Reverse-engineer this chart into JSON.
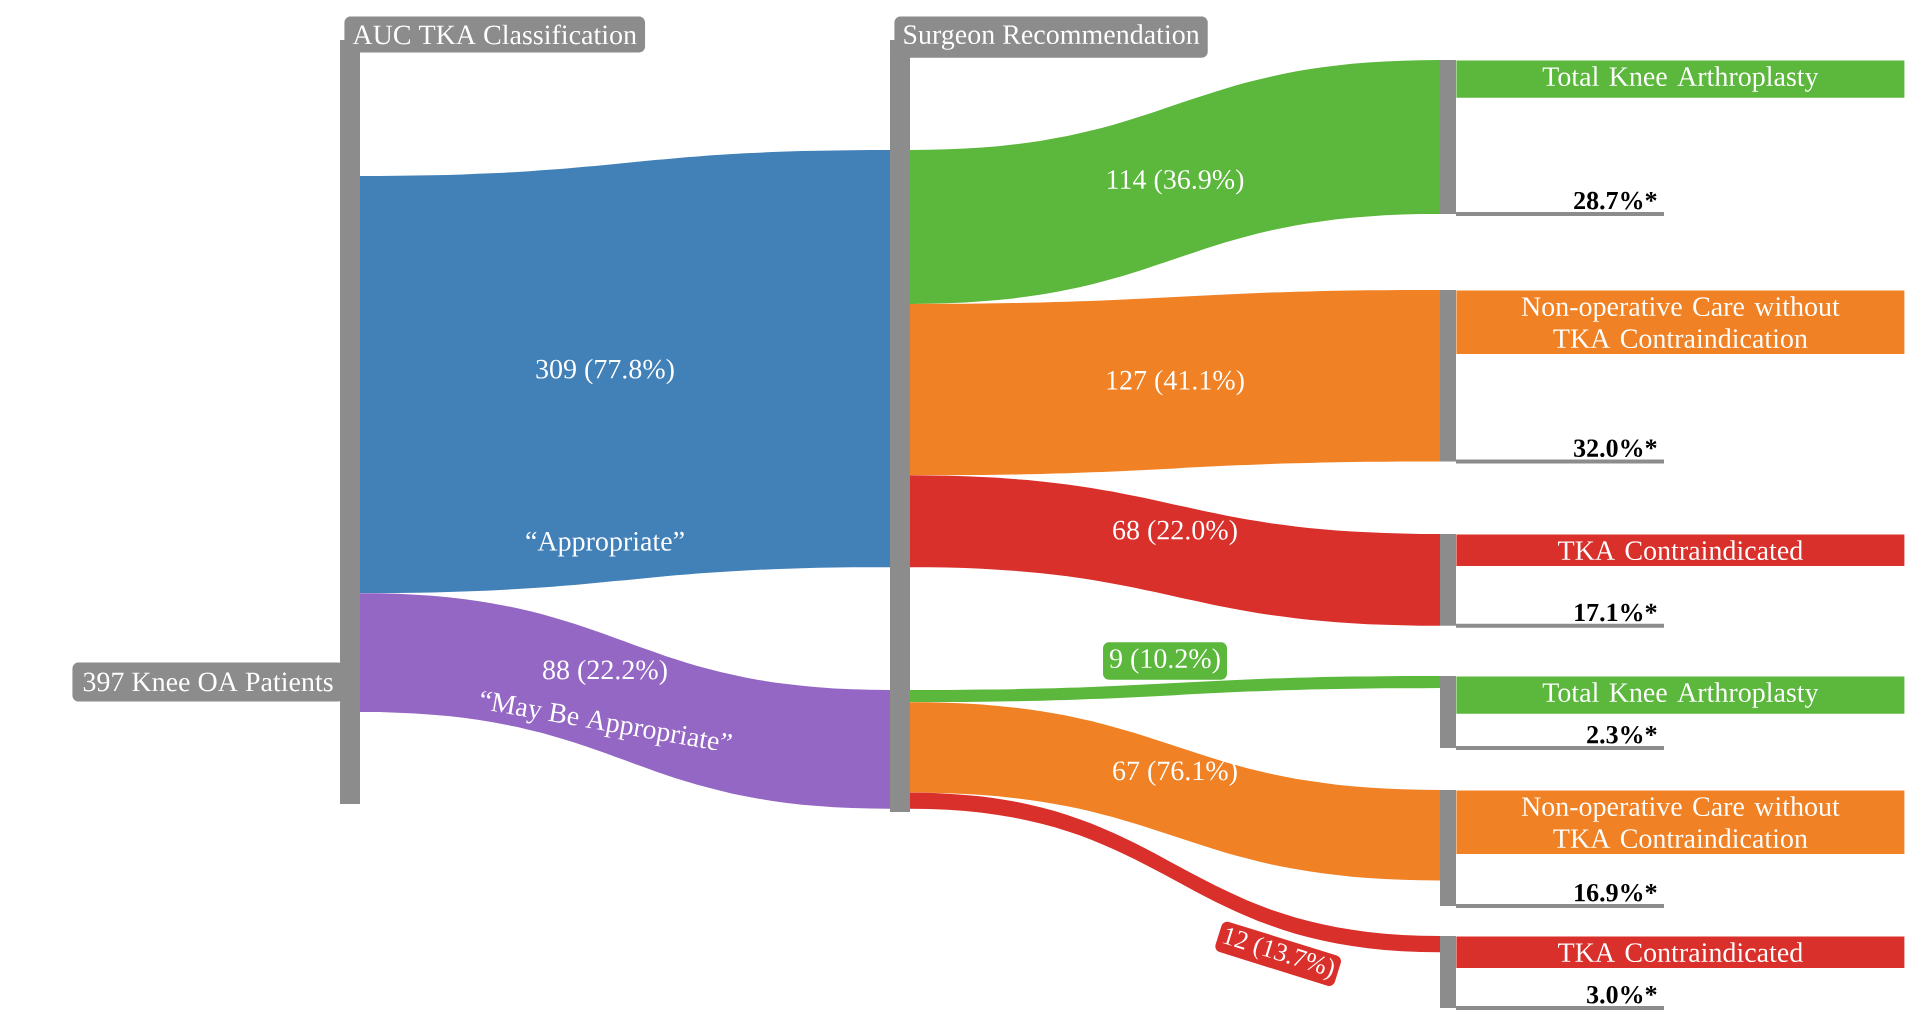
{
  "chart_data": {
    "type": "other",
    "categories": [
      "“Appropriate”",
      "“May Be Appropriate”",
      "Total Knee Arthroplasty",
      "Non-operative Care without TKA Contraindication",
      "TKA Contraindicated",
      "Total Knee Arthroplasty",
      "Non-operative Care without TKA Contraindication",
      "TKA Contraindicated"
    ],
    "values": [
      309,
      88,
      114,
      127,
      68,
      9,
      67,
      12
    ],
    "value_labels": [
      "309 (77.8%)",
      "88 (22.2%)",
      "114 (36.9%)",
      "127 (41.1%)",
      "68 (22.0%)",
      "9 (10.2%)",
      "67 (76.1%)",
      "12 (13.7%)"
    ],
    "colors": [
      "#4280b8",
      "#9467c5",
      "#5bb83c",
      "#f08225",
      "#d9302b",
      "#5bb83c",
      "#f08225",
      "#d9302b"
    ],
    "annotations": [
      "AUC TKA Classification",
      "Surgeon Recommendation",
      "397 Knee OA Patients",
      "28.7%*",
      "32.0%*",
      "17.1%*",
      "2.3%*",
      "16.9%*",
      "3.0%*"
    ]
  }
}
